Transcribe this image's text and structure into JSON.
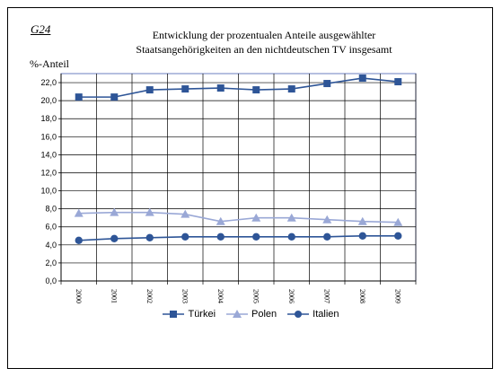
{
  "chart_id": "G24",
  "title_line1": "Entwicklung der prozentualen Anteile ausgewählter",
  "title_line2": "Staatsangehörigkeiten an den nichtdeutschen TV insgesamt",
  "colors": {
    "tuerkei": "#2e5597",
    "polen": "#9aa8d6",
    "italien": "#2e5597",
    "grid": "#000000",
    "plot_border": "#6b7fc0"
  },
  "chart_data": {
    "type": "line",
    "title": "Entwicklung der prozentualen Anteile ausgewählter Staatsangehörigkeiten an den nichtdeutschen TV insgesamt",
    "ylabel": "%-Anteil",
    "xlabel": "",
    "categories": [
      "2000",
      "2001",
      "2002",
      "2003",
      "2004",
      "2005",
      "2006",
      "2007",
      "2008",
      "2009"
    ],
    "ylim": [
      0,
      23
    ],
    "yticks": [
      "0,0",
      "2,0",
      "4,0",
      "6,0",
      "8,0",
      "10,0",
      "12,0",
      "14,0",
      "16,0",
      "18,0",
      "20,0",
      "22,0"
    ],
    "grid": true,
    "legend_position": "bottom",
    "series": [
      {
        "name": "Türkei",
        "marker": "square",
        "values": [
          20.4,
          20.4,
          21.2,
          21.3,
          21.4,
          21.2,
          21.3,
          21.9,
          22.5,
          22.1
        ]
      },
      {
        "name": "Polen",
        "marker": "triangle",
        "values": [
          7.5,
          7.6,
          7.6,
          7.4,
          6.6,
          7.0,
          7.0,
          6.8,
          6.6,
          6.5
        ]
      },
      {
        "name": "Italien",
        "marker": "circle",
        "values": [
          4.5,
          4.7,
          4.8,
          4.9,
          4.9,
          4.9,
          4.9,
          4.9,
          5.0,
          5.0
        ]
      }
    ]
  }
}
